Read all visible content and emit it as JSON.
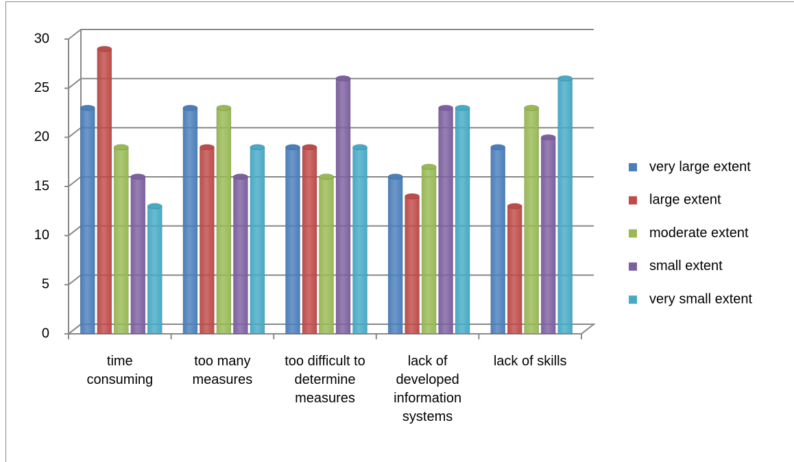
{
  "chart_data": {
    "type": "bar",
    "categories": [
      "time consuming",
      "too many measures",
      "too difficult to determine measures",
      "lack of developed information systems",
      "lack of skills"
    ],
    "series": [
      {
        "name": "very large extent",
        "color": "#4a7ebb",
        "values": [
          23,
          23,
          19,
          16,
          19
        ]
      },
      {
        "name": "large extent",
        "color": "#be4b48",
        "values": [
          29,
          19,
          19,
          14,
          13
        ]
      },
      {
        "name": "moderate extent",
        "color": "#98b954",
        "values": [
          19,
          23,
          16,
          17,
          23
        ]
      },
      {
        "name": "small extent",
        "color": "#7d60a0",
        "values": [
          16,
          16,
          26,
          23,
          20
        ]
      },
      {
        "name": "very small extent",
        "color": "#46aac5",
        "values": [
          13,
          19,
          19,
          23,
          26
        ]
      }
    ],
    "ylim": [
      0,
      30
    ],
    "yticks": [
      0,
      5,
      10,
      15,
      20,
      25,
      30
    ],
    "grid": true,
    "legend": "right"
  }
}
